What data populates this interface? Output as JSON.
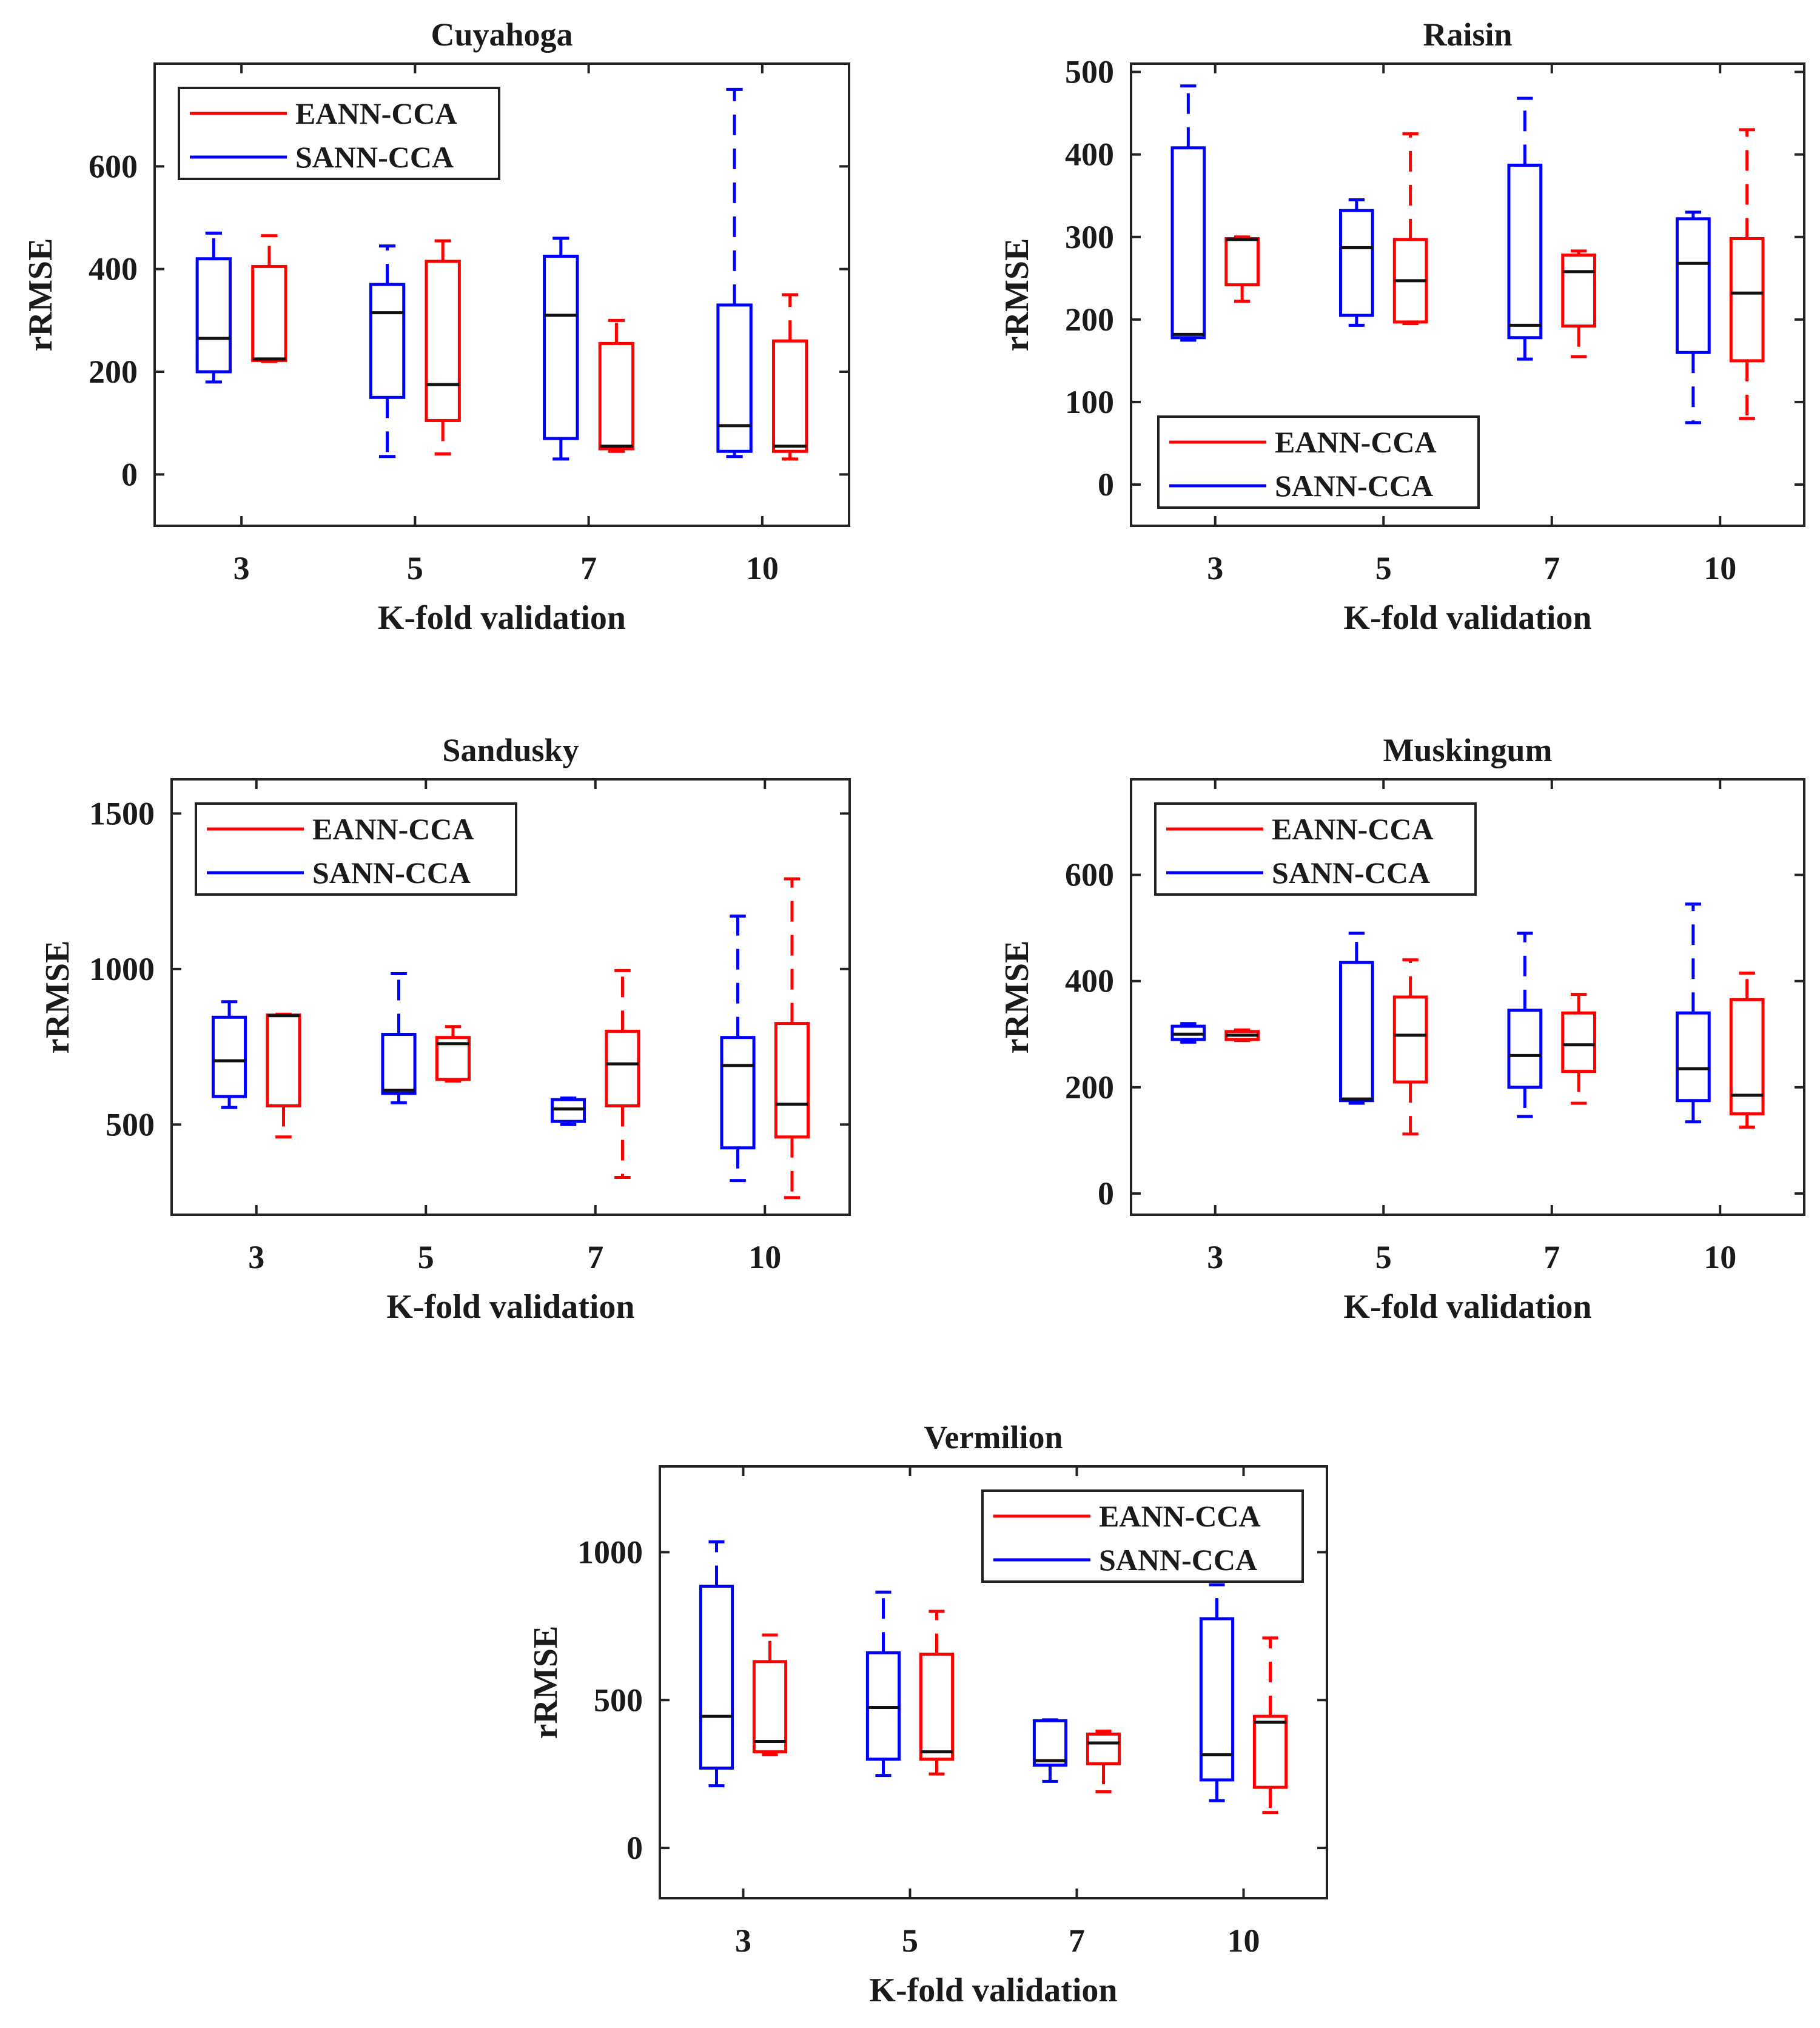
{
  "chart_data": [
    {
      "type": "box",
      "title": "Cuyahoga",
      "xlabel": "K-fold validation",
      "ylabel": "rRMSE",
      "categories": [
        "3",
        "5",
        "7",
        "10"
      ],
      "yticks": [
        0,
        200,
        400,
        600
      ],
      "ylim": [
        -100,
        800
      ],
      "legend": {
        "placement": "top-left",
        "entries": [
          "EANN-CCA",
          "SANN-CCA"
        ]
      },
      "grid": false,
      "series": [
        {
          "name": "SANN-CCA",
          "color": "#0000ff",
          "boxes": [
            {
              "min": 180,
              "q1": 200,
              "median": 265,
              "q3": 420,
              "max": 470
            },
            {
              "min": 35,
              "q1": 150,
              "median": 315,
              "q3": 370,
              "max": 445
            },
            {
              "min": 30,
              "q1": 70,
              "median": 310,
              "q3": 425,
              "max": 460
            },
            {
              "min": 35,
              "q1": 45,
              "median": 95,
              "q3": 330,
              "max": 750
            }
          ]
        },
        {
          "name": "EANN-CCA",
          "color": "#ff0000",
          "boxes": [
            {
              "min": 220,
              "q1": 222,
              "median": 225,
              "q3": 405,
              "max": 465
            },
            {
              "min": 40,
              "q1": 105,
              "median": 175,
              "q3": 415,
              "max": 455
            },
            {
              "min": 45,
              "q1": 50,
              "median": 55,
              "q3": 255,
              "max": 300
            },
            {
              "min": 30,
              "q1": 45,
              "median": 55,
              "q3": 260,
              "max": 350
            }
          ]
        }
      ]
    },
    {
      "type": "box",
      "title": "Raisin",
      "xlabel": "K-fold validation",
      "ylabel": "rRMSE",
      "categories": [
        "3",
        "5",
        "7",
        "10"
      ],
      "yticks": [
        0,
        100,
        200,
        300,
        400,
        500
      ],
      "ylim": [
        -50,
        510
      ],
      "legend": {
        "placement": "bottom-left",
        "entries": [
          "EANN-CCA",
          "SANN-CCA"
        ]
      },
      "grid": false,
      "series": [
        {
          "name": "SANN-CCA",
          "color": "#0000ff",
          "boxes": [
            {
              "min": 175,
              "q1": 178,
              "median": 182,
              "q3": 408,
              "max": 483
            },
            {
              "min": 193,
              "q1": 205,
              "median": 287,
              "q3": 332,
              "max": 345
            },
            {
              "min": 152,
              "q1": 178,
              "median": 193,
              "q3": 387,
              "max": 468
            },
            {
              "min": 75,
              "q1": 160,
              "median": 268,
              "q3": 322,
              "max": 330
            }
          ]
        },
        {
          "name": "EANN-CCA",
          "color": "#ff0000",
          "boxes": [
            {
              "min": 222,
              "q1": 242,
              "median": 297,
              "q3": 298,
              "max": 300
            },
            {
              "min": 195,
              "q1": 197,
              "median": 247,
              "q3": 297,
              "max": 425
            },
            {
              "min": 155,
              "q1": 192,
              "median": 258,
              "q3": 278,
              "max": 283
            },
            {
              "min": 80,
              "q1": 150,
              "median": 232,
              "q3": 298,
              "max": 430
            }
          ]
        }
      ]
    },
    {
      "type": "box",
      "title": "Sandusky",
      "xlabel": "K-fold validation",
      "ylabel": "rRMSE",
      "categories": [
        "3",
        "5",
        "7",
        "10"
      ],
      "yticks": [
        500,
        1000,
        1500
      ],
      "ylim": [
        210,
        1610
      ],
      "legend": {
        "placement": "top-left",
        "entries": [
          "EANN-CCA",
          "SANN-CCA"
        ]
      },
      "grid": false,
      "series": [
        {
          "name": "SANN-CCA",
          "color": "#0000ff",
          "boxes": [
            {
              "min": 555,
              "q1": 590,
              "median": 705,
              "q3": 845,
              "max": 895
            },
            {
              "min": 570,
              "q1": 600,
              "median": 610,
              "q3": 790,
              "max": 985
            },
            {
              "min": 500,
              "q1": 510,
              "median": 550,
              "q3": 580,
              "max": 585
            },
            {
              "min": 320,
              "q1": 425,
              "median": 690,
              "q3": 780,
              "max": 1170
            }
          ]
        },
        {
          "name": "EANN-CCA",
          "color": "#ff0000",
          "boxes": [
            {
              "min": 460,
              "q1": 560,
              "median": 850,
              "q3": 852,
              "max": 855
            },
            {
              "min": 640,
              "q1": 645,
              "median": 760,
              "q3": 780,
              "max": 815
            },
            {
              "min": 330,
              "q1": 560,
              "median": 695,
              "q3": 800,
              "max": 995
            },
            {
              "min": 265,
              "q1": 460,
              "median": 565,
              "q3": 825,
              "max": 1290
            }
          ]
        }
      ]
    },
    {
      "type": "box",
      "title": "Muskingum",
      "xlabel": "K-fold validation",
      "ylabel": "rRMSE",
      "categories": [
        "3",
        "5",
        "7",
        "10"
      ],
      "yticks": [
        0,
        200,
        400,
        600
      ],
      "ylim": [
        -40,
        780
      ],
      "legend": {
        "placement": "top-left",
        "entries": [
          "EANN-CCA",
          "SANN-CCA"
        ]
      },
      "grid": false,
      "series": [
        {
          "name": "SANN-CCA",
          "color": "#0000ff",
          "boxes": [
            {
              "min": 285,
              "q1": 290,
              "median": 300,
              "q3": 315,
              "max": 320
            },
            {
              "min": 170,
              "q1": 175,
              "median": 178,
              "q3": 435,
              "max": 490
            },
            {
              "min": 145,
              "q1": 200,
              "median": 260,
              "q3": 345,
              "max": 490
            },
            {
              "min": 135,
              "q1": 175,
              "median": 235,
              "q3": 340,
              "max": 545
            }
          ]
        },
        {
          "name": "EANN-CCA",
          "color": "#ff0000",
          "boxes": [
            {
              "min": 288,
              "q1": 290,
              "median": 298,
              "q3": 305,
              "max": 308
            },
            {
              "min": 112,
              "q1": 210,
              "median": 298,
              "q3": 370,
              "max": 440
            },
            {
              "min": 170,
              "q1": 230,
              "median": 280,
              "q3": 340,
              "max": 375
            },
            {
              "min": 125,
              "q1": 150,
              "median": 185,
              "q3": 365,
              "max": 415
            }
          ]
        }
      ]
    },
    {
      "type": "box",
      "title": "Vermilion",
      "xlabel": "K-fold validation",
      "ylabel": "rRMSE",
      "categories": [
        "3",
        "5",
        "7",
        "10"
      ],
      "yticks": [
        0,
        500,
        1000
      ],
      "ylim": [
        -170,
        1290
      ],
      "legend": {
        "placement": "top-right",
        "entries": [
          "EANN-CCA",
          "SANN-CCA"
        ]
      },
      "grid": false,
      "series": [
        {
          "name": "SANN-CCA",
          "color": "#0000ff",
          "boxes": [
            {
              "min": 210,
              "q1": 270,
              "median": 445,
              "q3": 885,
              "max": 1035
            },
            {
              "min": 245,
              "q1": 300,
              "median": 475,
              "q3": 660,
              "max": 865
            },
            {
              "min": 225,
              "q1": 280,
              "median": 295,
              "q3": 430,
              "max": 433
            },
            {
              "min": 160,
              "q1": 230,
              "median": 315,
              "q3": 775,
              "max": 890
            }
          ]
        },
        {
          "name": "EANN-CCA",
          "color": "#ff0000",
          "boxes": [
            {
              "min": 315,
              "q1": 325,
              "median": 360,
              "q3": 630,
              "max": 720
            },
            {
              "min": 250,
              "q1": 300,
              "median": 325,
              "q3": 655,
              "max": 800
            },
            {
              "min": 190,
              "q1": 285,
              "median": 355,
              "q3": 385,
              "max": 395
            },
            {
              "min": 120,
              "q1": 205,
              "median": 425,
              "q3": 445,
              "max": 710
            }
          ]
        }
      ]
    }
  ]
}
